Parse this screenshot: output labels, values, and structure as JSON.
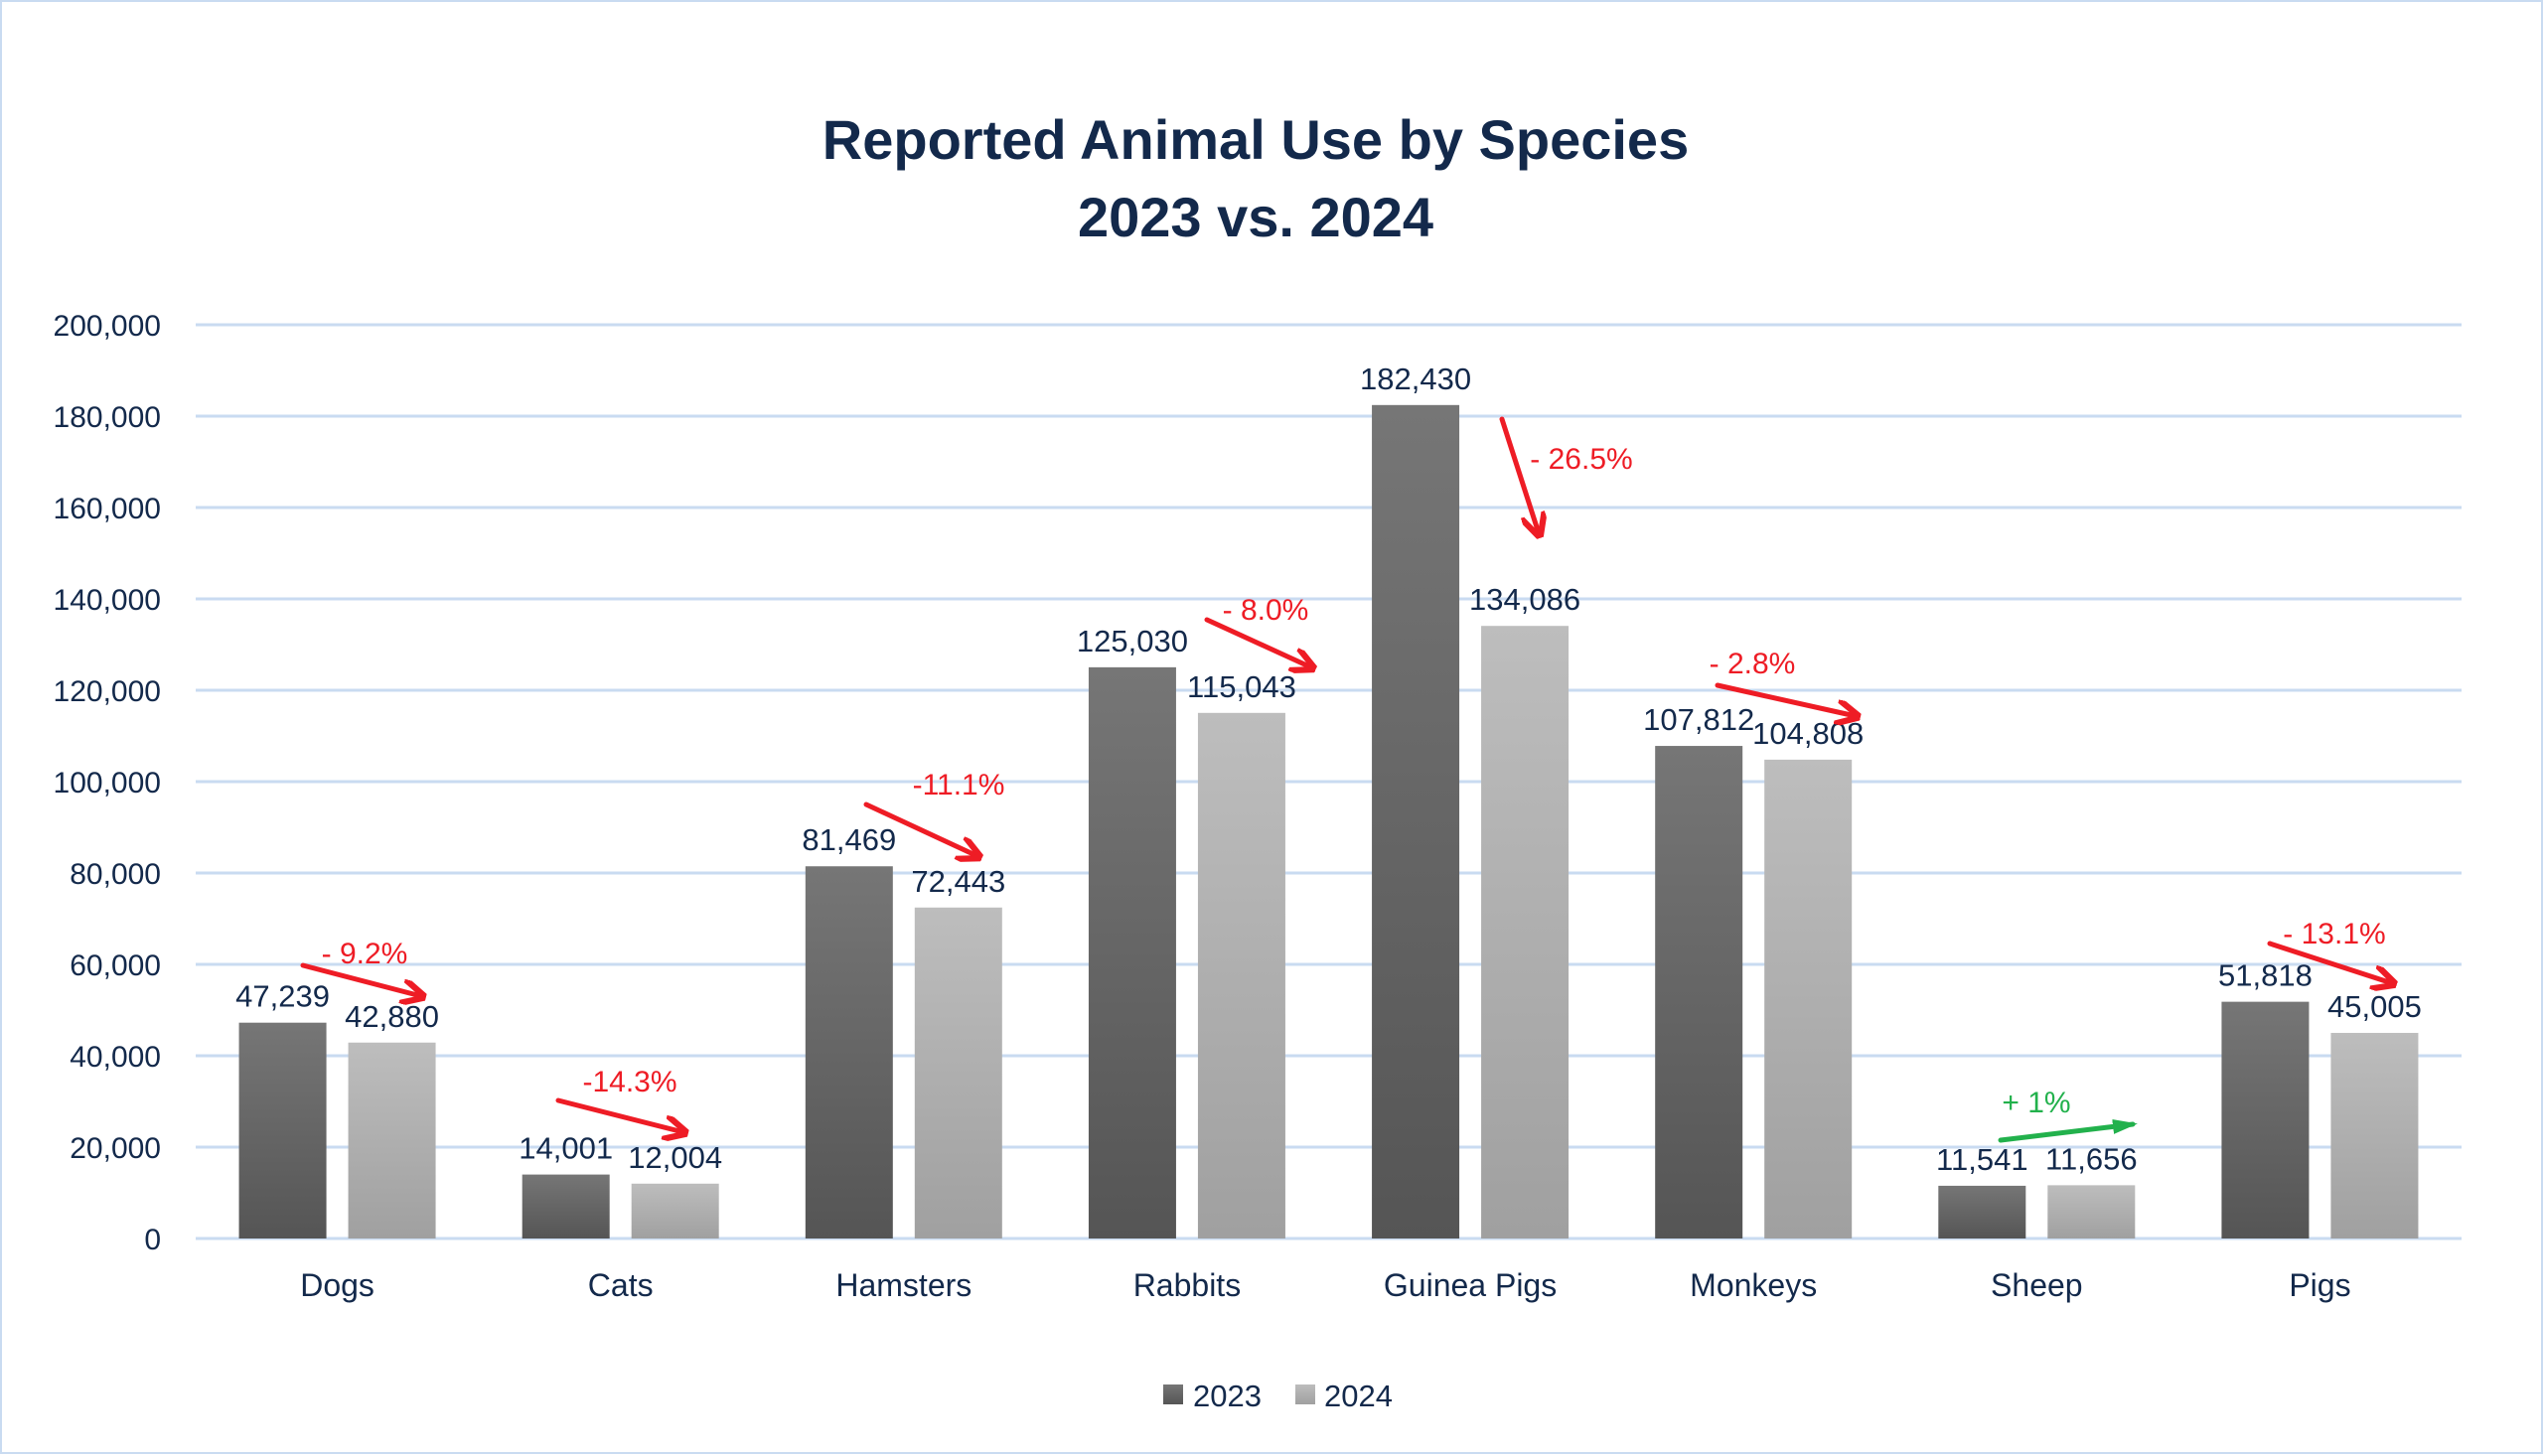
{
  "chart_data": {
    "type": "bar",
    "title": "Reported Animal Use by Species",
    "subtitle": "2023 vs. 2024",
    "xlabel": "",
    "ylabel": "",
    "ylim": [
      0,
      200000
    ],
    "yticks": [
      0,
      20000,
      40000,
      60000,
      80000,
      100000,
      120000,
      140000,
      160000,
      180000,
      200000
    ],
    "ytick_labels": [
      "0",
      "20,000",
      "40,000",
      "60,000",
      "80,000",
      "100,000",
      "120,000",
      "140,000",
      "160,000",
      "180,000",
      "200,000"
    ],
    "grid": true,
    "legend_position": "bottom",
    "categories": [
      "Dogs",
      "Cats",
      "Hamsters",
      "Rabbits",
      "Guinea Pigs",
      "Monkeys",
      "Sheep",
      "Pigs"
    ],
    "series": [
      {
        "name": "2023",
        "color_top": "#767676",
        "color_bottom": "#555555",
        "values": [
          47239,
          14001,
          81469,
          125030,
          182430,
          107812,
          11541,
          51818
        ],
        "labels": [
          "47,239",
          "14,001",
          "81,469",
          "125,030",
          "182,430",
          "107,812",
          "11,541",
          "51,818"
        ]
      },
      {
        "name": "2024",
        "color_top": "#bdbdbd",
        "color_bottom": "#a0a0a0",
        "values": [
          42880,
          12004,
          72443,
          115043,
          134086,
          104808,
          11656,
          45005
        ],
        "labels": [
          "42,880",
          "12,004",
          "72,443",
          "115,043",
          "134,086",
          "104,808",
          "11,656",
          "45,005"
        ]
      }
    ],
    "annotations": [
      {
        "category": "Dogs",
        "text": "- 9.2%",
        "direction": "down",
        "color": "#ee1c25"
      },
      {
        "category": "Cats",
        "text": "-14.3%",
        "direction": "down",
        "color": "#ee1c25"
      },
      {
        "category": "Hamsters",
        "text": "-11.1%",
        "direction": "down",
        "color": "#ee1c25"
      },
      {
        "category": "Rabbits",
        "text": "- 8.0%",
        "direction": "down",
        "color": "#ee1c25"
      },
      {
        "category": "Guinea Pigs",
        "text": "- 26.5%",
        "direction": "down",
        "color": "#ee1c25"
      },
      {
        "category": "Monkeys",
        "text": "- 2.8%",
        "direction": "down",
        "color": "#ee1c25"
      },
      {
        "category": "Sheep",
        "text": "+ 1%",
        "direction": "up",
        "color": "#22b14c"
      },
      {
        "category": "Pigs",
        "text": "- 13.1%",
        "direction": "down",
        "color": "#ee1c25"
      }
    ]
  },
  "colors": {
    "text": "#13294b",
    "gridline": "#c9dbf1",
    "frame_border": "#c9dbf1"
  }
}
